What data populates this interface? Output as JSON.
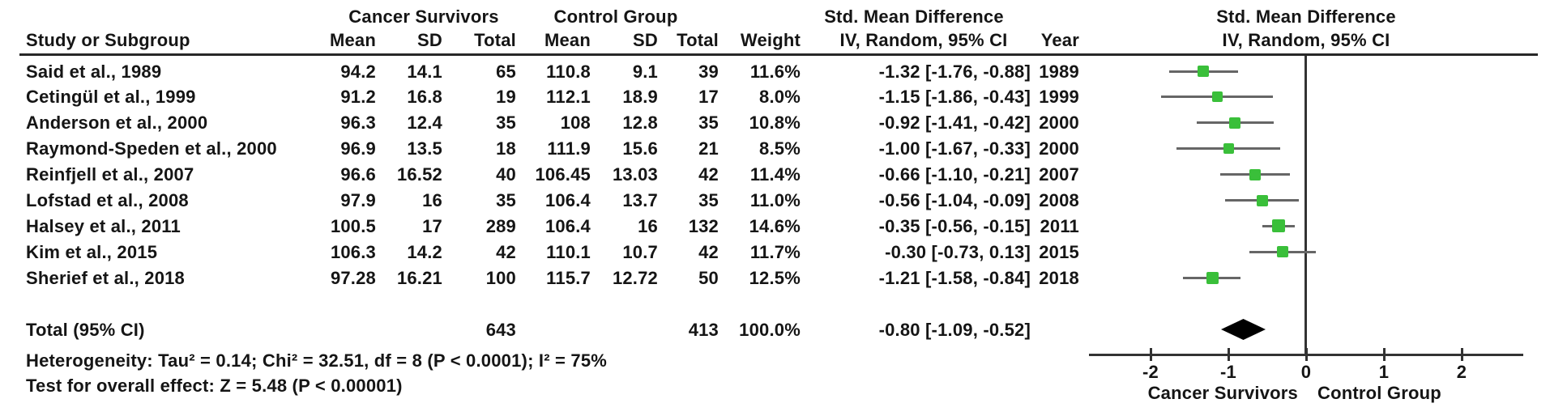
{
  "figure": {
    "group_headers": {
      "cancer_survivors": "Cancer Survivors",
      "control_group": "Control Group",
      "smd_table": "Std. Mean Difference",
      "smd_plot": "Std. Mean Difference"
    },
    "col_headers": {
      "study": "Study or Subgroup",
      "mean": "Mean",
      "sd": "SD",
      "total": "Total",
      "weight": "Weight",
      "iv_random_table": "IV, Random, 95% CI",
      "iv_random_plot": "IV, Random, 95% CI",
      "year": "Year"
    },
    "total_row": {
      "label": "Total (95% CI)",
      "cs_total": "643",
      "c_total": "413",
      "weight": "100.0%",
      "smd_label": "-0.80 [-1.09, -0.52]"
    },
    "footnotes": {
      "heterogeneity": "Heterogeneity: Tau² = 0.14; Chi² = 32.51, df = 8 (P < 0.0001); I² = 75%",
      "overall_effect": "Test for overall effect: Z = 5.48 (P < 0.00001)"
    },
    "axis_sub_labels": {
      "left": "Cancer Survivors",
      "right": "Control Group"
    }
  },
  "chart_data": {
    "type": "forest",
    "title": "Std. Mean Difference",
    "effect_model": "IV, Random, 95% CI",
    "x_ticks": [
      -2,
      -1,
      0,
      1,
      2
    ],
    "xlim": [
      -2.8,
      2.8
    ],
    "favours_left": "Cancer Survivors",
    "favours_right": "Control Group",
    "studies": [
      {
        "name": "Said et al., 1989",
        "cs_mean": 94.2,
        "cs_sd": 14.1,
        "cs_total": 65,
        "c_mean": 110.8,
        "c_sd": 9.1,
        "c_total": 39,
        "weight_pct": 11.6,
        "smd": -1.32,
        "ci_low": -1.76,
        "ci_high": -0.88,
        "smd_label": "-1.32 [-1.76, -0.88]",
        "year": "1989"
      },
      {
        "name": "Cetingül et al., 1999",
        "cs_mean": 91.2,
        "cs_sd": 16.8,
        "cs_total": 19,
        "c_mean": 112.1,
        "c_sd": 18.9,
        "c_total": 17,
        "weight_pct": 8.0,
        "smd": -1.15,
        "ci_low": -1.86,
        "ci_high": -0.43,
        "smd_label": "-1.15 [-1.86, -0.43]",
        "year": "1999"
      },
      {
        "name": "Anderson et al., 2000",
        "cs_mean": 96.3,
        "cs_sd": 12.4,
        "cs_total": 35,
        "c_mean": 108,
        "c_sd": 12.8,
        "c_total": 35,
        "weight_pct": 10.8,
        "smd": -0.92,
        "ci_low": -1.41,
        "ci_high": -0.42,
        "smd_label": "-0.92 [-1.41, -0.42]",
        "year": "2000"
      },
      {
        "name": "Raymond-Speden et al., 2000",
        "cs_mean": 96.9,
        "cs_sd": 13.5,
        "cs_total": 18,
        "c_mean": 111.9,
        "c_sd": 15.6,
        "c_total": 21,
        "weight_pct": 8.5,
        "smd": -1.0,
        "ci_low": -1.67,
        "ci_high": -0.33,
        "smd_label": "-1.00 [-1.67, -0.33]",
        "year": "2000"
      },
      {
        "name": "Reinfjell et al., 2007",
        "cs_mean": 96.6,
        "cs_sd": 16.52,
        "cs_total": 40,
        "c_mean": 106.45,
        "c_sd": 13.03,
        "c_total": 42,
        "weight_pct": 11.4,
        "smd": -0.66,
        "ci_low": -1.1,
        "ci_high": -0.21,
        "smd_label": "-0.66 [-1.10, -0.21]",
        "year": "2007"
      },
      {
        "name": "Lofstad et al., 2008",
        "cs_mean": 97.9,
        "cs_sd": 16,
        "cs_total": 35,
        "c_mean": 106.4,
        "c_sd": 13.7,
        "c_total": 35,
        "weight_pct": 11.0,
        "smd": -0.56,
        "ci_low": -1.04,
        "ci_high": -0.09,
        "smd_label": "-0.56 [-1.04, -0.09]",
        "year": "2008"
      },
      {
        "name": "Halsey et al., 2011",
        "cs_mean": 100.5,
        "cs_sd": 17,
        "cs_total": 289,
        "c_mean": 106.4,
        "c_sd": 16,
        "c_total": 132,
        "weight_pct": 14.6,
        "smd": -0.35,
        "ci_low": -0.56,
        "ci_high": -0.15,
        "smd_label": "-0.35 [-0.56, -0.15]",
        "year": "2011"
      },
      {
        "name": "Kim et al., 2015",
        "cs_mean": 106.3,
        "cs_sd": 14.2,
        "cs_total": 42,
        "c_mean": 110.1,
        "c_sd": 10.7,
        "c_total": 42,
        "weight_pct": 11.7,
        "smd": -0.3,
        "ci_low": -0.73,
        "ci_high": 0.13,
        "smd_label": "-0.30 [-0.73, 0.13]",
        "year": "2015"
      },
      {
        "name": "Sherief et al., 2018",
        "cs_mean": 97.28,
        "cs_sd": 16.21,
        "cs_total": 100,
        "c_mean": 115.7,
        "c_sd": 12.72,
        "c_total": 50,
        "weight_pct": 12.5,
        "smd": -1.21,
        "ci_low": -1.58,
        "ci_high": -0.84,
        "smd_label": "-1.21 [-1.58, -0.84]",
        "year": "2018"
      }
    ],
    "total": {
      "label": "Total (95% CI)",
      "cs_total": 643,
      "c_total": 413,
      "weight_pct": 100.0,
      "smd": -0.8,
      "ci_low": -1.09,
      "ci_high": -0.52,
      "smd_label": "-0.80 [-1.09, -0.52]"
    },
    "heterogeneity": {
      "tau2": 0.14,
      "chi2": 32.51,
      "df": 8,
      "p": "P < 0.0001",
      "i2": "75%"
    },
    "overall_effect": {
      "z": 5.48,
      "p": "P < 0.00001"
    }
  },
  "colors": {
    "marker_green": "#3abf3a",
    "ci_line": "#666666",
    "axis_line": "#333333",
    "diamond": "#000000",
    "text": "#151515"
  }
}
